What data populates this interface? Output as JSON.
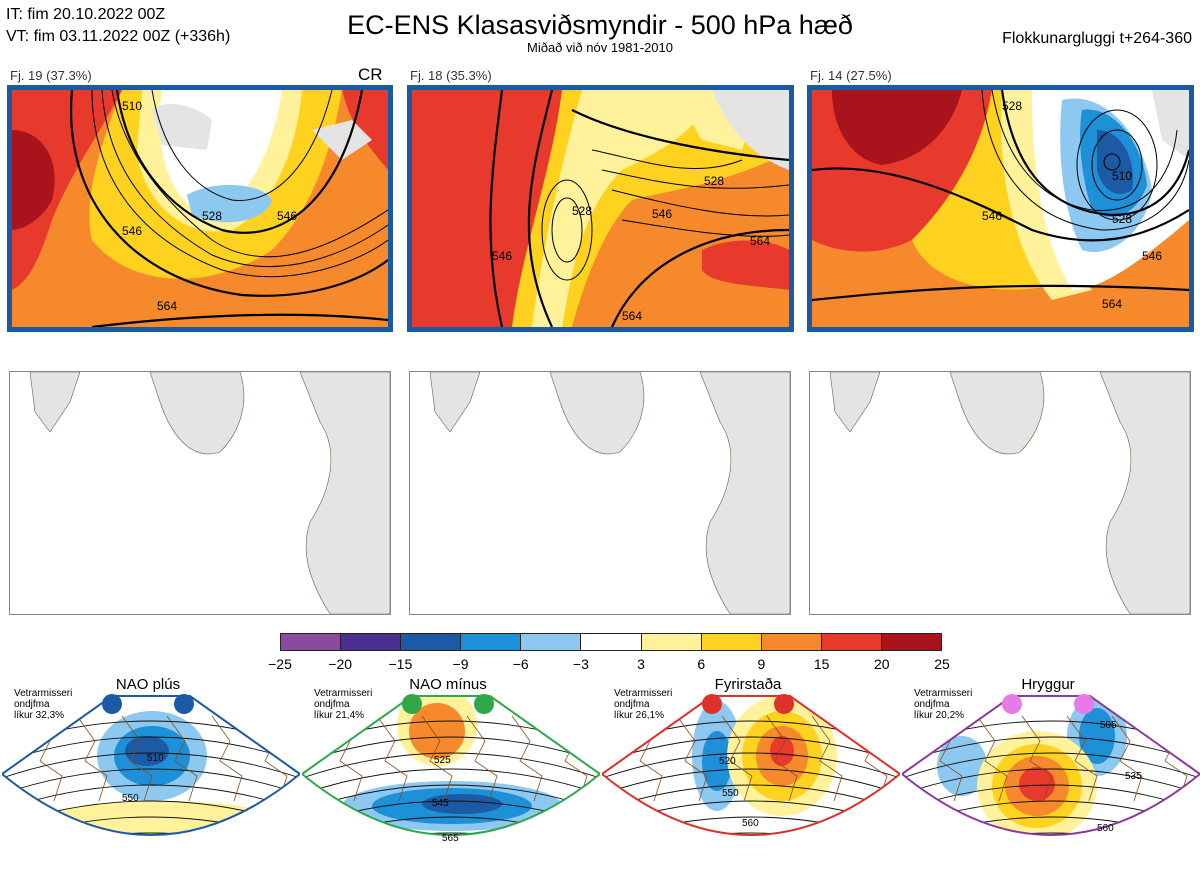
{
  "header": {
    "it": "IT: fim 20.10.2022 00Z",
    "vt": "VT: fim 03.11.2022 00Z  (+336h)",
    "title": "EC-ENS Klasasviðsmyndir - 500 hPa hæð",
    "subtitle": "Miðað við nóv 1981-2010",
    "window": "Flokkunargluggi t+264-360"
  },
  "clusters": [
    {
      "label": "Fj. 19 (37.3%)",
      "tag": "CR",
      "contours": [
        "528",
        "546",
        "564",
        "510",
        "546"
      ]
    },
    {
      "label": "Fj. 18 (35.3%)",
      "tag": "",
      "contours": [
        "528",
        "546",
        "546",
        "564",
        "528",
        "564"
      ]
    },
    {
      "label": "Fj. 14 (27.5%)",
      "tag": "",
      "contours": [
        "528",
        "546",
        "528",
        "546",
        "564",
        "510"
      ]
    }
  ],
  "colorbar": {
    "colors": [
      "#8b4a9c",
      "#4a2f8f",
      "#1c5aa5",
      "#1e90d8",
      "#8cc8ef",
      "#ffffff",
      "#fff29a",
      "#ffd21f",
      "#f5892c",
      "#e83a2c",
      "#a9131b"
    ],
    "ticks": [
      "−25",
      "−20",
      "−15",
      "−9",
      "−6",
      "−3",
      "3",
      "6",
      "9",
      "15",
      "20",
      "25"
    ]
  },
  "regimes": [
    {
      "title": "NAO plús",
      "note": [
        "Vetrarmisseri",
        "ondjfma",
        "líkur 32,3%"
      ],
      "contours": [
        "510",
        "550"
      ],
      "border": "#1c5aa5",
      "dot": "#1c5aa5"
    },
    {
      "title": "NAO mínus",
      "note": [
        "Vetrarmisseri",
        "ondjfma",
        "líkur 21,4%"
      ],
      "contours": [
        "525",
        "545",
        "565"
      ],
      "border": "#2fa84a",
      "dot": "#2fa84a"
    },
    {
      "title": "Fyrirstaða",
      "note": [
        "Vetrarmisseri",
        "ondjfma",
        "líkur 26,1%"
      ],
      "contours": [
        "520",
        "550",
        "560"
      ],
      "border": "#e0302a",
      "dot": "#e0302a"
    },
    {
      "title": "Hryggur",
      "note": [
        "Vetrarmisseri",
        "ondjfma",
        "líkur 20,2%"
      ],
      "contours": [
        "505",
        "535",
        "560"
      ],
      "border": "#8a3a9a",
      "dot": "#e67ae6"
    }
  ]
}
